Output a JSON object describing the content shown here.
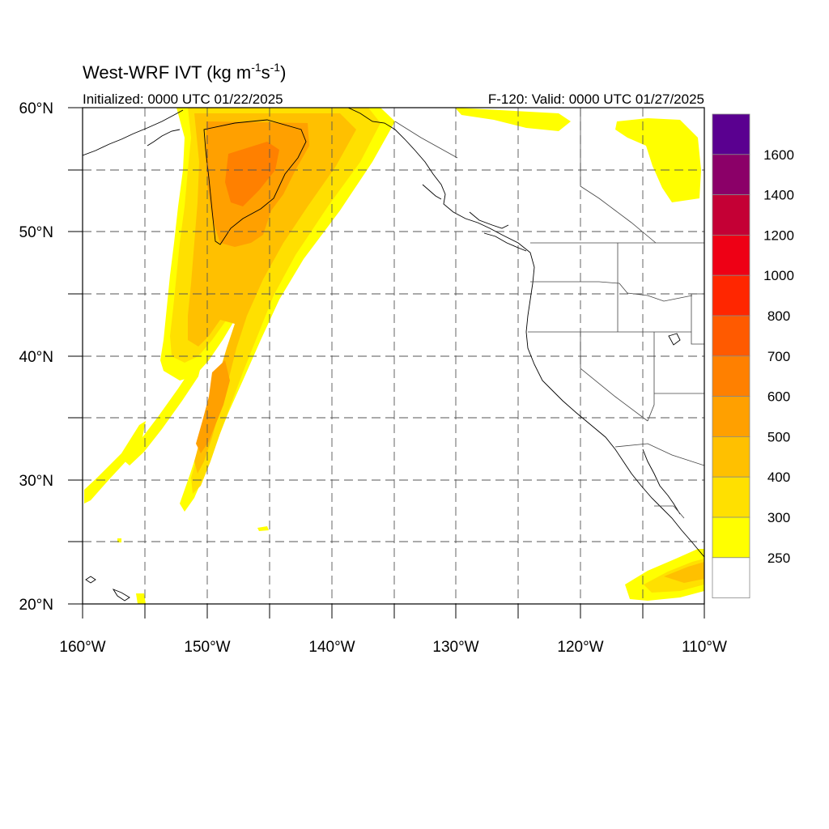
{
  "title": {
    "main": "West-WRF IVT (kg m",
    "sup1": "-1",
    "mid": "s",
    "sup2": "-1",
    "end": ")"
  },
  "subtitle": {
    "left": "Initialized: 0000 UTC 01/22/2025",
    "right": "F-120: Valid: 0000 UTC 01/27/2025"
  },
  "axes": {
    "lat_labels": [
      "60°N",
      "50°N",
      "40°N",
      "30°N",
      "20°N"
    ],
    "lon_labels": [
      "160°W",
      "150°W",
      "140°W",
      "130°W",
      "120°W",
      "110°W"
    ]
  },
  "colorbar": {
    "labels": [
      "1600",
      "1400",
      "1200",
      "1000",
      "800",
      "700",
      "600",
      "500",
      "400",
      "300",
      "250"
    ],
    "colors": [
      "#5a0090",
      "#8b0068",
      "#c40035",
      "#ee0015",
      "#ff2600",
      "#ff5a00",
      "#ff8000",
      "#ffa000",
      "#ffc000",
      "#ffe000",
      "#ffff00",
      "#ffffff"
    ]
  },
  "colors": {
    "ivt_250": "#ffff00",
    "ivt_300": "#ffe000",
    "ivt_400": "#ffc000",
    "ivt_500": "#ffa000",
    "ivt_600": "#ff8000"
  }
}
